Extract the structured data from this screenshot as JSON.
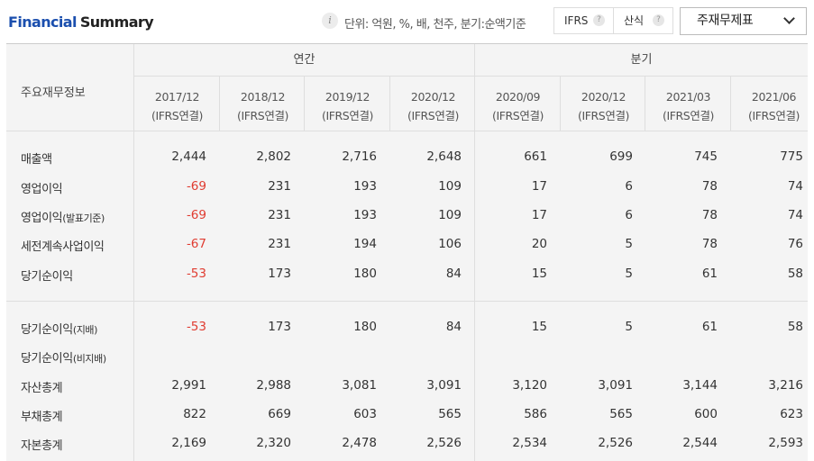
{
  "header": {
    "title_word1": "Financial",
    "title_word2": "Summary",
    "info_icon": "info-icon",
    "unit_text": "단위: 억원, %, 배, 천주, 분기:순액기준",
    "toggle_ifrs": "IFRS",
    "toggle_sansik": "산식",
    "help_mark": "?",
    "statement_select": "주재무제표"
  },
  "table": {
    "row_header_title": "주요재무정보",
    "group_annual": "연간",
    "group_quarter": "분기",
    "columns": [
      {
        "period": "2017/12",
        "basis": "(IFRS연결)"
      },
      {
        "period": "2018/12",
        "basis": "(IFRS연결)"
      },
      {
        "period": "2019/12",
        "basis": "(IFRS연결)"
      },
      {
        "period": "2020/12",
        "basis": "(IFRS연결)"
      },
      {
        "period": "2020/09",
        "basis": "(IFRS연결)"
      },
      {
        "period": "2020/12",
        "basis": "(IFRS연결)"
      },
      {
        "period": "2021/03",
        "basis": "(IFRS연결)"
      },
      {
        "period": "2021/06",
        "basis": "(IFRS연결)"
      }
    ],
    "rows": [
      {
        "label": "매출액",
        "label_suffix": "",
        "values": [
          "2,444",
          "2,802",
          "2,716",
          "2,648",
          "661",
          "699",
          "745",
          "775"
        ]
      },
      {
        "label": "영업이익",
        "label_suffix": "",
        "values": [
          "-69",
          "231",
          "193",
          "109",
          "17",
          "6",
          "78",
          "74"
        ]
      },
      {
        "label": "영업이익",
        "label_suffix": "(발표기준)",
        "values": [
          "-69",
          "231",
          "193",
          "109",
          "17",
          "6",
          "78",
          "74"
        ]
      },
      {
        "label": "세전계속사업이익",
        "label_suffix": "",
        "values": [
          "-67",
          "231",
          "194",
          "106",
          "20",
          "5",
          "78",
          "76"
        ]
      },
      {
        "label": "당기순이익",
        "label_suffix": "",
        "values": [
          "-53",
          "173",
          "180",
          "84",
          "15",
          "5",
          "61",
          "58"
        ]
      },
      {
        "label": "당기순이익",
        "label_suffix": "(지배)",
        "values": [
          "-53",
          "173",
          "180",
          "84",
          "15",
          "5",
          "61",
          "58"
        ]
      },
      {
        "label": "당기순이익",
        "label_suffix": "(비지배)",
        "values": [
          "",
          "",
          "",
          "",
          "",
          "",
          "",
          ""
        ]
      },
      {
        "label": "자산총계",
        "label_suffix": "",
        "values": [
          "2,991",
          "2,988",
          "3,081",
          "3,091",
          "3,120",
          "3,091",
          "3,144",
          "3,216"
        ]
      },
      {
        "label": "부채총계",
        "label_suffix": "",
        "values": [
          "822",
          "669",
          "603",
          "565",
          "586",
          "565",
          "600",
          "623"
        ]
      },
      {
        "label": "자본총계",
        "label_suffix": "",
        "values": [
          "2,169",
          "2,320",
          "2,478",
          "2,526",
          "2,534",
          "2,526",
          "2,544",
          "2,593"
        ]
      }
    ]
  },
  "colors": {
    "brand_blue": "#1b4fae",
    "negative_red": "#e03c31",
    "table_bg": "#f4f4f4"
  }
}
